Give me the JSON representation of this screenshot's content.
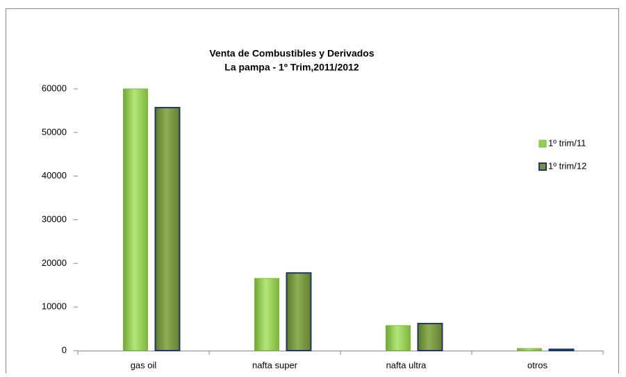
{
  "chart_data": {
    "type": "bar",
    "title": "Venta de Combustibles y Derivados",
    "subtitle": "La pampa - 1º Trim,2011/2012",
    "categories": [
      "gas oil",
      "nafta super",
      "nafta ultra",
      "otros"
    ],
    "series": [
      {
        "name": "1º trim/11",
        "color": "#92d050",
        "values": [
          60000,
          16550,
          5730,
          480
        ]
      },
      {
        "name": "1º trim/12",
        "color": "#77933c",
        "values": [
          55700,
          17800,
          6200,
          300
        ]
      }
    ],
    "ylim": [
      0,
      60000
    ],
    "yticks": [
      0,
      10000,
      20000,
      30000,
      40000,
      50000,
      60000
    ],
    "grid": false,
    "legend": "right"
  }
}
